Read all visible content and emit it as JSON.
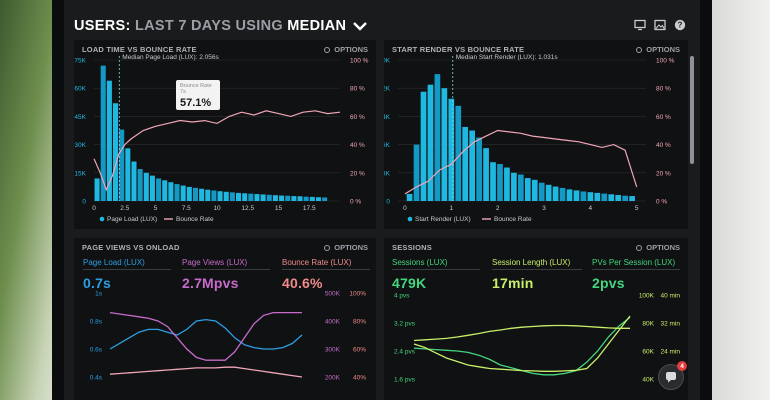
{
  "header": {
    "title_prefix": "USERS:",
    "title_range": "LAST 7 DAYS",
    "title_using": "USING",
    "title_metric": "MEDIAN"
  },
  "icons": [
    "monitor-icon",
    "image-icon",
    "help-icon",
    "chevron-down-icon",
    "options-icon",
    "chat-icon"
  ],
  "colors": {
    "bar": "#1fb8e0",
    "bar_dark": "#1498c4",
    "pink": "#f0a6b8",
    "green": "#43d67e",
    "lime": "#c8ef6a",
    "purple": "#c76bcb",
    "blue": "#2c9fe3",
    "red": "#ef8a8a"
  },
  "panels": {
    "load_time": {
      "title": "LOAD TIME VS BOUNCE RATE",
      "options": "OPTIONS",
      "annotation": "Median Page Load (LUX): 2.056s",
      "tooltip_label": "Bounce Rate",
      "tooltip_sub": "7s",
      "tooltip_value": "57.1%",
      "legend": [
        "Page Load (LUX)",
        "Bounce Rate"
      ]
    },
    "start_render": {
      "title": "START RENDER VS BOUNCE RATE",
      "options": "OPTIONS",
      "annotation": "Median Start Render (LUX): 1.031s",
      "legend": [
        "Start Render (LUX)",
        "Bounce Rate"
      ]
    },
    "page_views": {
      "title": "PAGE VIEWS VS ONLOAD",
      "options": "OPTIONS",
      "metrics": [
        {
          "label": "Page Load (LUX)",
          "value": "0.7s"
        },
        {
          "label": "Page Views (LUX)",
          "value": "2.7Mpvs"
        },
        {
          "label": "Bounce Rate (LUX)",
          "value": "40.6%"
        }
      ]
    },
    "sessions": {
      "title": "SESSIONS",
      "options": "OPTIONS",
      "metrics": [
        {
          "label": "Sessions (LUX)",
          "value": "479K"
        },
        {
          "label": "Session Length (LUX)",
          "value": "17min"
        },
        {
          "label": "PVs Per Session (LUX)",
          "value": "2pvs"
        }
      ]
    }
  },
  "chat_badge": "4",
  "chart_data": [
    {
      "type": "bar",
      "title": "LOAD TIME VS BOUNCE RATE",
      "x_ticks": [
        "0",
        "2.5",
        "5",
        "7.5",
        "10",
        "12.5",
        "15",
        "17.5"
      ],
      "xlim": [
        0,
        20
      ],
      "y_ticks": [
        "0",
        "15K",
        "30K",
        "45K",
        "60K",
        "75K"
      ],
      "ylim": [
        0,
        75000
      ],
      "y2_ticks": [
        "0 %",
        "20 %",
        "40 %",
        "60 %",
        "80 %",
        "100 %"
      ],
      "y2lim": [
        0,
        100
      ],
      "median_x": 2.056,
      "series": [
        {
          "name": "Page Load (LUX)",
          "x": [
            0.25,
            0.75,
            1.25,
            1.75,
            2.25,
            2.75,
            3.25,
            3.75,
            4.25,
            4.75,
            5.25,
            5.75,
            6.25,
            6.75,
            7.25,
            7.75,
            8.25,
            8.75,
            9.25,
            9.75,
            10.25,
            10.75,
            11.25,
            11.75,
            12.25,
            12.75,
            13.25,
            13.75,
            14.25,
            14.75,
            15.25,
            15.75,
            16.25,
            16.75,
            17.25,
            17.75,
            18.25,
            18.75
          ],
          "values": [
            12000,
            72000,
            64000,
            52000,
            38000,
            28000,
            21000,
            17000,
            15000,
            13500,
            12000,
            11000,
            10000,
            9000,
            8200,
            7500,
            7000,
            6500,
            6000,
            5600,
            5200,
            4900,
            4600,
            4300,
            4100,
            3900,
            3700,
            3500,
            3300,
            3100,
            2900,
            2800,
            2600,
            2500,
            2300,
            2200,
            2000,
            1900
          ]
        },
        {
          "name": "Bounce Rate",
          "x": [
            0,
            0.5,
            1,
            1.5,
            2,
            2.5,
            3,
            4,
            5,
            6,
            7,
            8,
            9,
            10,
            11,
            12,
            13,
            14,
            15,
            16,
            17,
            18,
            19,
            20
          ],
          "values": [
            30,
            20,
            8,
            18,
            33,
            40,
            44,
            50,
            53,
            55,
            57.1,
            56,
            57,
            55,
            60,
            63,
            61,
            64,
            62,
            60,
            63,
            64,
            62,
            63
          ]
        }
      ]
    },
    {
      "type": "bar",
      "title": "START RENDER VS BOUNCE RATE",
      "x_ticks": [
        "0",
        "1",
        "2",
        "3",
        "4",
        "5"
      ],
      "xlim": [
        -0.15,
        5.2
      ],
      "y_ticks": [
        "0",
        "8K",
        "16K",
        "24K",
        "32K",
        "40K"
      ],
      "ylim": [
        0,
        40000
      ],
      "y2_ticks": [
        "0 %",
        "20 %",
        "40 %",
        "60 %",
        "80 %",
        "100 %"
      ],
      "y2lim": [
        0,
        100
      ],
      "median_x": 1.031,
      "series": [
        {
          "name": "Start Render (LUX)",
          "x": [
            0.1,
            0.25,
            0.4,
            0.55,
            0.7,
            0.85,
            1,
            1.15,
            1.3,
            1.45,
            1.6,
            1.75,
            1.9,
            2.05,
            2.2,
            2.35,
            2.5,
            2.65,
            2.8,
            2.95,
            3.1,
            3.25,
            3.4,
            3.55,
            3.7,
            3.85,
            4,
            4.15,
            4.3,
            4.45,
            4.6,
            4.75,
            4.9
          ],
          "values": [
            2000,
            16000,
            31000,
            33000,
            36000,
            32000,
            29000,
            27000,
            21000,
            20000,
            18000,
            15000,
            11000,
            10500,
            9500,
            8000,
            7500,
            6500,
            6000,
            5200,
            4600,
            4100,
            3700,
            3300,
            3000,
            2700,
            2500,
            2300,
            2100,
            1900,
            1700,
            1500,
            1400
          ]
        },
        {
          "name": "Bounce Rate",
          "x": [
            0,
            0.25,
            0.5,
            0.75,
            1,
            1.25,
            1.5,
            1.75,
            2,
            2.25,
            2.5,
            2.75,
            3,
            3.25,
            3.5,
            3.75,
            4,
            4.25,
            4.5,
            4.75,
            5
          ],
          "values": [
            5,
            10,
            14,
            22,
            26,
            35,
            42,
            46,
            50,
            49,
            48,
            46,
            45,
            44,
            43,
            42,
            40,
            38,
            40,
            36,
            10
          ]
        }
      ]
    },
    {
      "type": "line",
      "title": "PAGE VIEWS VS ONLOAD",
      "y_ticks": [
        "1s",
        "0.8s",
        "0.6s",
        "0.4s"
      ],
      "ylim": [
        0.4,
        1.0
      ],
      "y2_ticks": [
        "500K",
        "400K",
        "300K",
        "200K"
      ],
      "y2lim": [
        200000,
        500000
      ],
      "y3_ticks": [
        "100%",
        "80%",
        "60%",
        "40%"
      ],
      "y3lim": [
        40,
        100
      ],
      "x": [
        0,
        1,
        2,
        3,
        4,
        5,
        6,
        7,
        8,
        9,
        10,
        11,
        12,
        13,
        14,
        15,
        16,
        17,
        18,
        19,
        20
      ],
      "series": [
        {
          "name": "Page Load (LUX)",
          "axis": "y",
          "values": [
            0.6,
            0.64,
            0.68,
            0.72,
            0.74,
            0.74,
            0.72,
            0.7,
            0.74,
            0.8,
            0.81,
            0.8,
            0.75,
            0.68,
            0.63,
            0.61,
            0.6,
            0.6,
            0.61,
            0.64,
            0.7
          ]
        },
        {
          "name": "Page Views (LUX)",
          "axis": "y2",
          "values": [
            430000,
            425000,
            420000,
            415000,
            410000,
            400000,
            380000,
            340000,
            300000,
            270000,
            260000,
            260000,
            260000,
            290000,
            340000,
            390000,
            420000,
            430000,
            430000,
            430000,
            430000
          ]
        },
        {
          "name": "Bounce Rate (LUX)",
          "axis": "y3",
          "values": [
            42,
            42.5,
            43,
            43.5,
            44,
            44.5,
            45,
            45.5,
            46,
            46.5,
            46.5,
            46.5,
            47,
            47,
            46,
            45,
            44,
            43,
            42,
            41,
            40
          ]
        }
      ]
    },
    {
      "type": "line",
      "title": "SESSIONS",
      "y_ticks": [
        "4 pvs",
        "3.2 pvs",
        "2.4 pvs",
        "1.6 pvs"
      ],
      "ylim": [
        1.6,
        4.0
      ],
      "y2_ticks": [
        "100K",
        "80K",
        "60K",
        "40K"
      ],
      "y2lim": [
        40000,
        100000
      ],
      "y3_ticks": [
        "40 min",
        "32 min",
        "24 min",
        "16 min"
      ],
      "y3lim": [
        16,
        40
      ],
      "x": [
        0,
        1,
        2,
        3,
        4,
        5,
        6,
        7,
        8,
        9,
        10,
        11,
        12,
        13,
        14,
        15,
        16,
        17,
        18,
        19,
        20
      ],
      "series": [
        {
          "name": "Sessions (LUX)",
          "axis": "y2",
          "values": [
            62000,
            61500,
            61000,
            60500,
            60000,
            59000,
            57000,
            54000,
            50000,
            48000,
            46000,
            44000,
            43000,
            43000,
            44000,
            46000,
            52000,
            60000,
            70000,
            78000,
            84000
          ]
        },
        {
          "name": "Session Length (LUX)",
          "axis": "y3",
          "values": [
            26,
            25,
            23.5,
            22,
            21,
            20,
            19.5,
            19,
            18.8,
            18.6,
            18.4,
            18.3,
            18.2,
            18.2,
            18.3,
            18.5,
            19,
            22,
            26,
            30,
            34
          ]
        },
        {
          "name": "PVs Per Session (LUX)",
          "axis": "y",
          "values": [
            2.7,
            2.72,
            2.74,
            2.76,
            2.8,
            2.85,
            2.9,
            2.96,
            3.0,
            3.05,
            3.08,
            3.1,
            3.12,
            3.13,
            3.13,
            3.12,
            3.1,
            3.08,
            3.06,
            3.05,
            3.05
          ]
        }
      ]
    }
  ]
}
